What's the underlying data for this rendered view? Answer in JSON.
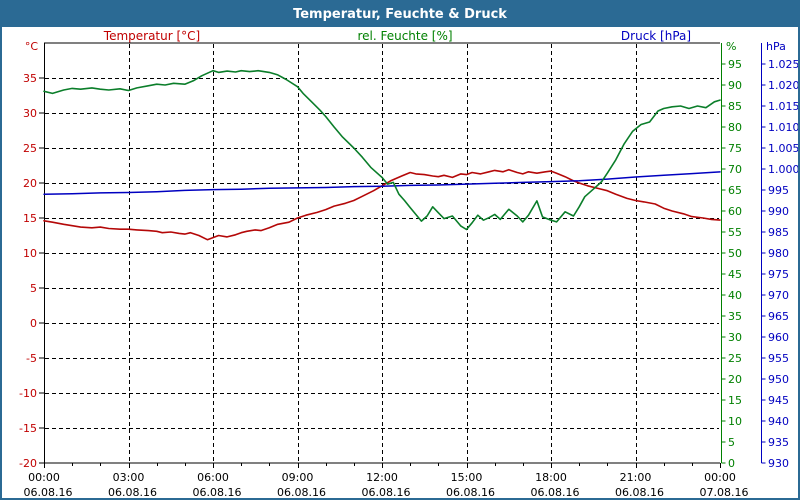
{
  "window": {
    "title": "Temperatur, Feuchte & Druck",
    "frame_color": "#2b6a94",
    "titlebar_text_color": "#ffffff",
    "background_color": "#ffffff"
  },
  "legend": [
    {
      "label": "Temperatur [°C]",
      "color": "#c00000"
    },
    {
      "label": "rel. Feuchte [%]",
      "color": "#008000"
    },
    {
      "label": "Druck [hPa]",
      "color": "#0000c0"
    }
  ],
  "chart_data": {
    "type": "line",
    "title": "Temperatur, Feuchte & Druck",
    "grid": {
      "dash": "4 3",
      "color": "#000000",
      "border_color": "#000000"
    },
    "x_axis": {
      "hours_range": [
        0,
        24
      ],
      "major_step_hours": 3,
      "minor_step_hours": 1,
      "major_labels": [
        {
          "time": "00:00",
          "date": "06.08.16"
        },
        {
          "time": "03:00",
          "date": "06.08.16"
        },
        {
          "time": "06:00",
          "date": "06.08.16"
        },
        {
          "time": "09:00",
          "date": "06.08.16"
        },
        {
          "time": "12:00",
          "date": "06.08.16"
        },
        {
          "time": "15:00",
          "date": "06.08.16"
        },
        {
          "time": "18:00",
          "date": "06.08.16"
        },
        {
          "time": "21:00",
          "date": "06.08.16"
        },
        {
          "time": "00:00",
          "date": "07.08.16"
        }
      ]
    },
    "axes": {
      "temperature": {
        "unit": "°C",
        "color": "#c00000",
        "range": [
          -20,
          40
        ],
        "tick_values": [
          35,
          30,
          25,
          20,
          15,
          10,
          5,
          0,
          -5,
          -10,
          -15,
          -20
        ],
        "tick_labels": [
          "35",
          "30",
          "25",
          "20",
          "15",
          "10",
          "5",
          "0",
          "-5",
          "-10",
          "-15",
          "-20"
        ]
      },
      "humidity": {
        "unit": "%",
        "color": "#008000",
        "range": [
          0,
          100
        ],
        "tick_values": [
          95,
          90,
          85,
          80,
          75,
          70,
          65,
          60,
          55,
          50,
          45,
          40,
          35,
          30,
          25,
          20,
          15,
          10,
          5,
          0
        ],
        "tick_labels": [
          "95",
          "90",
          "85",
          "80",
          "75",
          "70",
          "65",
          "60",
          "55",
          "50",
          "45",
          "40",
          "35",
          "30",
          "25",
          "20",
          "15",
          "10",
          "5",
          "0"
        ]
      },
      "pressure": {
        "unit": "hPa",
        "color": "#0000c0",
        "range": [
          930,
          1030
        ],
        "tick_values": [
          1025,
          1020,
          1015,
          1010,
          1005,
          1000,
          995,
          990,
          985,
          980,
          975,
          970,
          965,
          960,
          955,
          950,
          945,
          940,
          935,
          930
        ],
        "tick_labels": [
          "1.025",
          "1.020",
          "1.015",
          "1.010",
          "1.005",
          "1.000",
          "995",
          "990",
          "985",
          "980",
          "975",
          "970",
          "965",
          "960",
          "955",
          "950",
          "945",
          "940",
          "935",
          "930"
        ]
      }
    },
    "series": [
      {
        "name": "Temperatur",
        "axis": "temperature",
        "color": "#b40808",
        "width": 1.6,
        "points": [
          [
            0,
            14.6
          ],
          [
            0.3,
            14.4
          ],
          [
            0.7,
            14.1
          ],
          [
            1,
            13.9
          ],
          [
            1.3,
            13.7
          ],
          [
            1.7,
            13.6
          ],
          [
            2,
            13.7
          ],
          [
            2.3,
            13.5
          ],
          [
            2.7,
            13.4
          ],
          [
            3,
            13.4
          ],
          [
            3.3,
            13.3
          ],
          [
            3.7,
            13.2
          ],
          [
            4,
            13.1
          ],
          [
            4.2,
            12.9
          ],
          [
            4.5,
            13.0
          ],
          [
            4.8,
            12.8
          ],
          [
            5,
            12.7
          ],
          [
            5.2,
            12.9
          ],
          [
            5.5,
            12.5
          ],
          [
            5.8,
            11.9
          ],
          [
            6,
            12.2
          ],
          [
            6.2,
            12.5
          ],
          [
            6.5,
            12.3
          ],
          [
            6.8,
            12.6
          ],
          [
            7,
            12.9
          ],
          [
            7.2,
            13.1
          ],
          [
            7.5,
            13.3
          ],
          [
            7.7,
            13.2
          ],
          [
            8,
            13.6
          ],
          [
            8.3,
            14.1
          ],
          [
            8.7,
            14.4
          ],
          [
            9,
            15.0
          ],
          [
            9.3,
            15.4
          ],
          [
            9.7,
            15.8
          ],
          [
            10,
            16.2
          ],
          [
            10.3,
            16.7
          ],
          [
            10.7,
            17.1
          ],
          [
            11,
            17.5
          ],
          [
            11.3,
            18.1
          ],
          [
            11.7,
            18.9
          ],
          [
            12,
            19.6
          ],
          [
            12.3,
            20.3
          ],
          [
            12.7,
            21.0
          ],
          [
            13,
            21.5
          ],
          [
            13.2,
            21.3
          ],
          [
            13.5,
            21.2
          ],
          [
            13.8,
            21.0
          ],
          [
            14,
            20.9
          ],
          [
            14.2,
            21.1
          ],
          [
            14.5,
            20.8
          ],
          [
            14.8,
            21.3
          ],
          [
            15,
            21.2
          ],
          [
            15.2,
            21.5
          ],
          [
            15.5,
            21.3
          ],
          [
            15.8,
            21.6
          ],
          [
            16,
            21.8
          ],
          [
            16.3,
            21.6
          ],
          [
            16.5,
            21.9
          ],
          [
            16.8,
            21.5
          ],
          [
            17,
            21.3
          ],
          [
            17.2,
            21.6
          ],
          [
            17.5,
            21.4
          ],
          [
            17.8,
            21.6
          ],
          [
            18,
            21.7
          ],
          [
            18.2,
            21.4
          ],
          [
            18.5,
            20.9
          ],
          [
            18.8,
            20.3
          ],
          [
            19,
            20.0
          ],
          [
            19.3,
            19.6
          ],
          [
            19.7,
            19.2
          ],
          [
            20,
            18.9
          ],
          [
            20.3,
            18.4
          ],
          [
            20.7,
            17.8
          ],
          [
            21,
            17.5
          ],
          [
            21.3,
            17.3
          ],
          [
            21.7,
            17.0
          ],
          [
            22,
            16.4
          ],
          [
            22.3,
            16.0
          ],
          [
            22.7,
            15.6
          ],
          [
            23,
            15.2
          ],
          [
            23.4,
            15.0
          ],
          [
            23.7,
            14.8
          ],
          [
            24,
            14.7
          ]
        ]
      },
      {
        "name": "Druck",
        "axis": "pressure",
        "color": "#0000c0",
        "width": 1.5,
        "points": [
          [
            0,
            994.0
          ],
          [
            1,
            994.1
          ],
          [
            2,
            994.3
          ],
          [
            3,
            994.4
          ],
          [
            4,
            994.6
          ],
          [
            5,
            994.9
          ],
          [
            6,
            995.1
          ],
          [
            7,
            995.2
          ],
          [
            8,
            995.4
          ],
          [
            9,
            995.5
          ],
          [
            10,
            995.6
          ],
          [
            11,
            995.8
          ],
          [
            12,
            995.9
          ],
          [
            13,
            996.1
          ],
          [
            14,
            996.2
          ],
          [
            15,
            996.4
          ],
          [
            16,
            996.6
          ],
          [
            17,
            996.8
          ],
          [
            18,
            997.0
          ],
          [
            19,
            997.2
          ],
          [
            20,
            997.6
          ],
          [
            21,
            998.1
          ],
          [
            22,
            998.5
          ],
          [
            23,
            998.9
          ],
          [
            24,
            999.3
          ]
        ]
      },
      {
        "name": "rel. Feuchte",
        "axis": "humidity",
        "color": "#0b7e2a",
        "width": 1.6,
        "points": [
          [
            0,
            88.5
          ],
          [
            0.3,
            88.0
          ],
          [
            0.7,
            88.8
          ],
          [
            1,
            89.2
          ],
          [
            1.3,
            89.0
          ],
          [
            1.7,
            89.3
          ],
          [
            2,
            89.0
          ],
          [
            2.3,
            88.8
          ],
          [
            2.7,
            89.1
          ],
          [
            3,
            88.7
          ],
          [
            3.3,
            89.3
          ],
          [
            3.7,
            89.8
          ],
          [
            4,
            90.2
          ],
          [
            4.3,
            90.0
          ],
          [
            4.6,
            90.4
          ],
          [
            5,
            90.2
          ],
          [
            5.3,
            91.0
          ],
          [
            5.6,
            92.2
          ],
          [
            6,
            93.4
          ],
          [
            6.2,
            93.0
          ],
          [
            6.5,
            93.3
          ],
          [
            6.8,
            93.1
          ],
          [
            7,
            93.4
          ],
          [
            7.3,
            93.2
          ],
          [
            7.6,
            93.4
          ],
          [
            8,
            93.0
          ],
          [
            8.3,
            92.4
          ],
          [
            8.6,
            91.3
          ],
          [
            9,
            89.6
          ],
          [
            9.2,
            88.0
          ],
          [
            9.5,
            86.0
          ],
          [
            9.8,
            84.0
          ],
          [
            10,
            82.5
          ],
          [
            10.3,
            80.0
          ],
          [
            10.6,
            77.6
          ],
          [
            11,
            75.0
          ],
          [
            11.3,
            72.8
          ],
          [
            11.6,
            70.4
          ],
          [
            12,
            68.0
          ],
          [
            12.2,
            66.4
          ],
          [
            12.4,
            66.8
          ],
          [
            12.6,
            64.0
          ],
          [
            12.8,
            62.5
          ],
          [
            13,
            60.8
          ],
          [
            13.2,
            59.2
          ],
          [
            13.4,
            57.6
          ],
          [
            13.6,
            58.8
          ],
          [
            13.8,
            61.0
          ],
          [
            14,
            59.6
          ],
          [
            14.2,
            58.2
          ],
          [
            14.5,
            58.8
          ],
          [
            14.8,
            56.4
          ],
          [
            15,
            55.6
          ],
          [
            15.2,
            57.2
          ],
          [
            15.4,
            59.0
          ],
          [
            15.6,
            57.8
          ],
          [
            15.8,
            58.4
          ],
          [
            16,
            59.2
          ],
          [
            16.2,
            58.0
          ],
          [
            16.5,
            60.4
          ],
          [
            16.8,
            58.8
          ],
          [
            17,
            57.4
          ],
          [
            17.2,
            59.0
          ],
          [
            17.5,
            62.4
          ],
          [
            17.7,
            58.6
          ],
          [
            18,
            57.8
          ],
          [
            18.2,
            57.4
          ],
          [
            18.5,
            59.8
          ],
          [
            18.8,
            58.8
          ],
          [
            19,
            61.0
          ],
          [
            19.2,
            63.4
          ],
          [
            19.5,
            65.2
          ],
          [
            19.8,
            67.0
          ],
          [
            20,
            69.0
          ],
          [
            20.3,
            72.2
          ],
          [
            20.6,
            76.0
          ],
          [
            20.9,
            79.0
          ],
          [
            21.2,
            80.6
          ],
          [
            21.5,
            81.2
          ],
          [
            21.8,
            83.8
          ],
          [
            22,
            84.4
          ],
          [
            22.3,
            84.8
          ],
          [
            22.6,
            85.0
          ],
          [
            22.9,
            84.4
          ],
          [
            23.2,
            85.0
          ],
          [
            23.5,
            84.6
          ],
          [
            23.8,
            86.0
          ],
          [
            24,
            86.4
          ]
        ]
      }
    ]
  }
}
